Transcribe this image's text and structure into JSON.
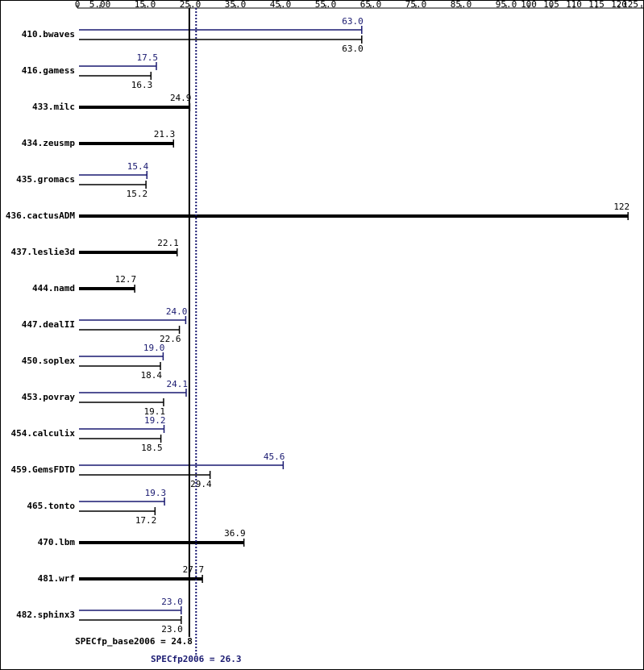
{
  "chart_data": {
    "type": "bar",
    "orientation": "horizontal",
    "categories": [
      "410.bwaves",
      "416.gamess",
      "433.milc",
      "434.zeusmp",
      "435.gromacs",
      "436.cactusADM",
      "437.leslie3d",
      "444.namd",
      "447.dealII",
      "450.soplex",
      "453.povray",
      "454.calculix",
      "459.GemsFDTD",
      "465.tonto",
      "470.lbm",
      "481.wrf",
      "482.sphinx3"
    ],
    "series": [
      {
        "color": "#191970",
        "values": [
          63.0,
          17.5,
          null,
          null,
          15.4,
          null,
          null,
          null,
          24.0,
          19.0,
          24.1,
          19.2,
          45.6,
          19.3,
          null,
          null,
          23.0
        ],
        "value_labels": [
          "63.0",
          "17.5",
          null,
          null,
          "15.4",
          null,
          null,
          null,
          "24.0",
          "19.0",
          "24.1",
          "19.2",
          "45.6",
          "19.3",
          null,
          null,
          "23.0"
        ]
      },
      {
        "color": "#000000",
        "values": [
          63.0,
          16.3,
          24.9,
          21.3,
          15.2,
          122,
          22.1,
          12.7,
          22.6,
          18.4,
          19.1,
          18.5,
          29.4,
          17.2,
          36.9,
          27.7,
          23.0
        ],
        "value_labels": [
          "63.0",
          "16.3",
          "24.9",
          "21.3",
          "15.2",
          "122",
          "22.1",
          "12.7",
          "22.6",
          "18.4",
          "19.1",
          "18.5",
          "29.4",
          "17.2",
          "36.9",
          "27.7",
          "23.0"
        ]
      }
    ],
    "xlim": [
      0,
      125
    ],
    "xticks": [
      0,
      {
        "value": 5,
        "label": "5.00"
      },
      {
        "value": 15,
        "label": "15.0"
      },
      {
        "value": 25,
        "label": "25.0"
      },
      {
        "value": 35,
        "label": "35.0"
      },
      {
        "value": 45,
        "label": "45.0"
      },
      {
        "value": 55,
        "label": "55.0"
      },
      {
        "value": 65,
        "label": "65.0"
      },
      {
        "value": 75,
        "label": "75.0"
      },
      {
        "value": 85,
        "label": "85.0"
      },
      {
        "value": 95,
        "label": "95.0"
      },
      100,
      105,
      110,
      115,
      120,
      125
    ],
    "reference_lines": [
      {
        "text": "SPECfp_base2006 = 24.8",
        "value": 24.8,
        "color": "#000000",
        "style": "solid"
      },
      {
        "text": "SPECfp2006 = 26.3",
        "value": 26.3,
        "color": "#191970",
        "style": "dotted"
      }
    ]
  }
}
